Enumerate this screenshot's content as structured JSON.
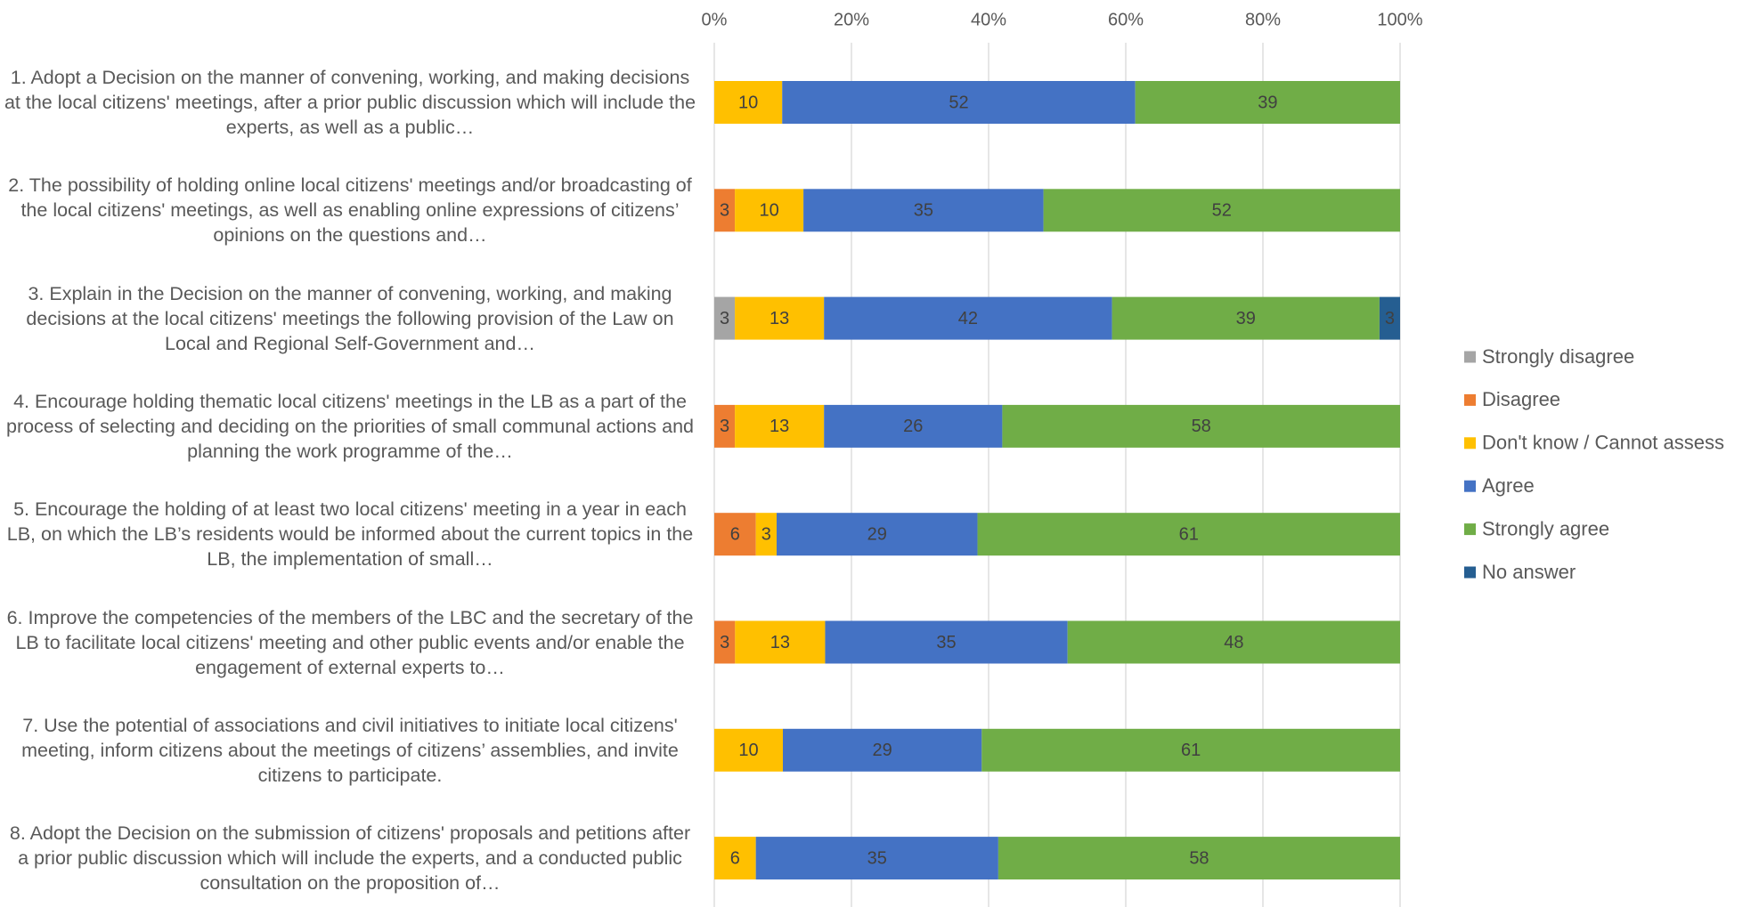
{
  "chart_data": {
    "type": "stacked-bar-horizontal-percent",
    "categories": [
      "1. Adopt a Decision on the manner of convening, working, and making decisions at the local citizens' meetings, after a prior public discussion which will include the experts, as well as a public…",
      "2. The possibility of holding online local citizens' meetings and/or broadcasting of the local citizens' meetings, as well as enabling online expressions of citizens’ opinions on the questions and…",
      "3. Explain in the Decision on the manner of convening, working, and making decisions at the local citizens' meetings the following provision of the Law on Local and Regional Self-Government and…",
      "4. Encourage holding thematic local citizens' meetings in the LB as a part of the process of selecting and deciding on the priorities of small communal actions and planning the work programme of the…",
      "5. Encourage the holding of at least two local citizens' meeting in a year in each LB, on which the LB’s residents would be informed about the current topics in the LB, the implementation of small…",
      "6. Improve the competencies of the members of the LBC and the secretary of the LB to facilitate local citizens' meeting and other public events and/or enable the engagement of external experts to…",
      "7. Use the potential of associations and civil initiatives to initiate local citizens' meeting, inform citizens about the meetings of citizens’ assemblies, and invite citizens to participate.",
      "8. Adopt the Decision on the submission of citizens' proposals and petitions after a prior public discussion which will include the experts, and a conducted public consultation on the proposition of…"
    ],
    "series": [
      {
        "name": "Strongly disagree",
        "color": "#a5a5a5",
        "values": [
          null,
          null,
          3,
          null,
          null,
          null,
          null,
          null
        ]
      },
      {
        "name": "Disagree",
        "color": "#ed7d31",
        "values": [
          null,
          3,
          null,
          3,
          6,
          3,
          null,
          null
        ]
      },
      {
        "name": "Don't know / Cannot assess",
        "color": "#ffc000",
        "values": [
          10,
          10,
          13,
          13,
          3,
          13,
          10,
          6
        ]
      },
      {
        "name": "Agree",
        "color": "#4472c4",
        "values": [
          52,
          35,
          42,
          26,
          29,
          35,
          29,
          35
        ]
      },
      {
        "name": "Strongly agree",
        "color": "#70ad47",
        "values": [
          39,
          52,
          39,
          58,
          61,
          48,
          61,
          58
        ]
      },
      {
        "name": "No answer",
        "color": "#255e91",
        "values": [
          null,
          null,
          3,
          null,
          null,
          null,
          null,
          null
        ]
      }
    ],
    "xlim": [
      0,
      100
    ],
    "xticks": [
      {
        "value": 0,
        "label": "0%"
      },
      {
        "value": 20,
        "label": "20%"
      },
      {
        "value": 40,
        "label": "40%"
      },
      {
        "value": 60,
        "label": "60%"
      },
      {
        "value": 80,
        "label": "80%"
      },
      {
        "value": 100,
        "label": "100%"
      }
    ],
    "grid": true,
    "legend": "right"
  }
}
